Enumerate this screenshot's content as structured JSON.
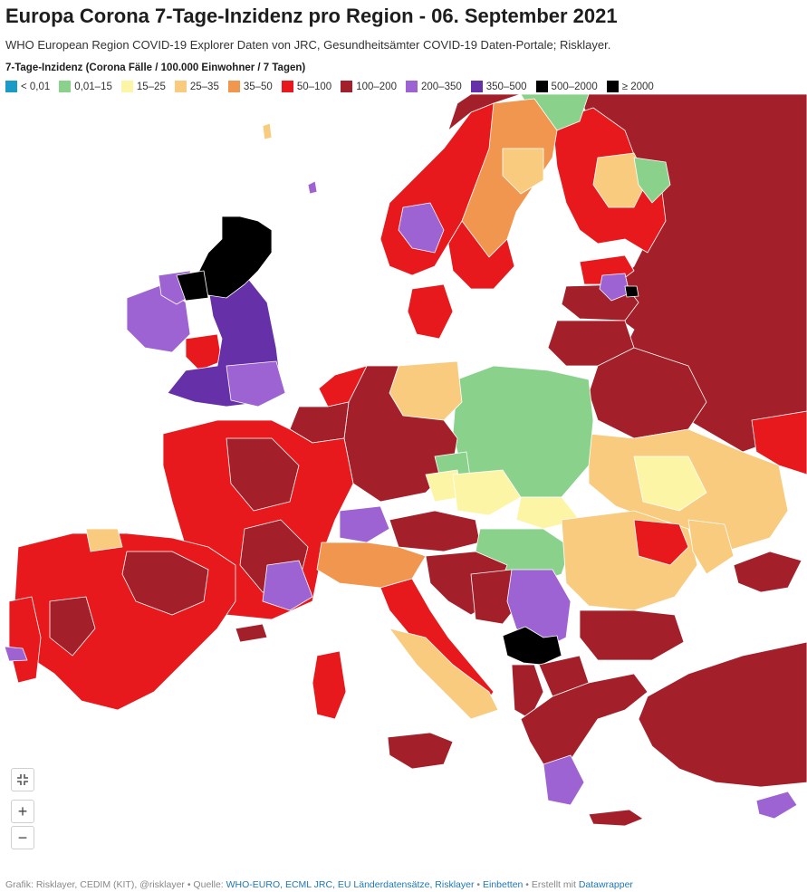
{
  "header": {
    "title": "Europa Corona 7-Tage-Inzidenz pro Region - 06. September 2021",
    "subtitle": "WHO European Region COVID-19 Explorer Daten von JRC, Gesundheitsämter COVID-19  Daten-Portale; Risklayer."
  },
  "legend": {
    "title": "7-Tage-Inzidenz (Corona Fälle / 100.000 Einwohner / 7 Tagen)",
    "items": [
      {
        "label": "< 0,01",
        "color": "#1a9bc7"
      },
      {
        "label": "0,01–15",
        "color": "#8ad28c"
      },
      {
        "label": "15–25",
        "color": "#fdf5a6"
      },
      {
        "label": "25–35",
        "color": "#f8cb7f"
      },
      {
        "label": "35–50",
        "color": "#f1964f"
      },
      {
        "label": "50–100",
        "color": "#e8191c"
      },
      {
        "label": "100–200",
        "color": "#a3202a"
      },
      {
        "label": "200–350",
        "color": "#9e63d2"
      },
      {
        "label": "350–500",
        "color": "#6630a8"
      },
      {
        "label": "500–2000",
        "color": "#000000"
      },
      {
        "label": "≥ 2000",
        "color": "#000000"
      }
    ]
  },
  "controls": {
    "fullscreen_icon": "collapse-icon",
    "zoom_in": "+",
    "zoom_out": "−"
  },
  "footer": {
    "prefix": "Grafik: Risklayer, CEDIM (KIT), @risklayer • Quelle: ",
    "sources_link": "WHO-EURO, ECML JRC, EU Länderdatensätze, Risklayer",
    "sep1": " • ",
    "embed_link": "Einbetten",
    "sep2": " • Erstellt mit ",
    "tool_link": "Datawrapper"
  }
}
